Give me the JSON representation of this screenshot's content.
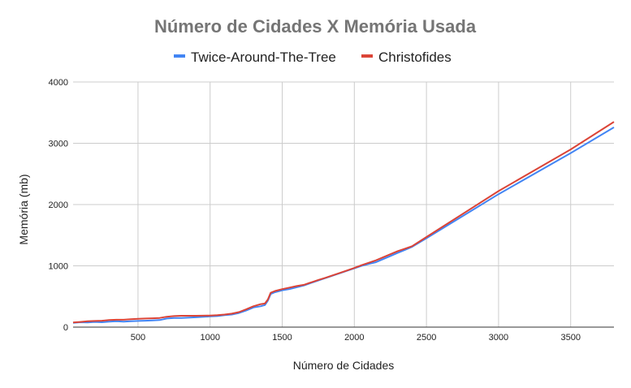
{
  "chart_data": {
    "type": "line",
    "title": "Número de Cidades X Memória Usada",
    "xlabel": "Número de Cidades",
    "ylabel": "Memória (mb)",
    "xlim": [
      50,
      3800
    ],
    "ylim": [
      0,
      4000
    ],
    "x_ticks": [
      500,
      1000,
      1500,
      2000,
      2500,
      3000,
      3500
    ],
    "y_ticks": [
      0,
      1000,
      2000,
      3000,
      4000
    ],
    "grid": true,
    "legend_position": "top",
    "series": [
      {
        "name": "Twice-Around-The-Tree",
        "color": "#4285f4",
        "points": [
          [
            50,
            70
          ],
          [
            100,
            80
          ],
          [
            150,
            75
          ],
          [
            200,
            85
          ],
          [
            250,
            80
          ],
          [
            300,
            90
          ],
          [
            350,
            95
          ],
          [
            400,
            90
          ],
          [
            450,
            95
          ],
          [
            500,
            100
          ],
          [
            550,
            105
          ],
          [
            600,
            110
          ],
          [
            650,
            115
          ],
          [
            700,
            140
          ],
          [
            750,
            150
          ],
          [
            800,
            150
          ],
          [
            900,
            160
          ],
          [
            1000,
            175
          ],
          [
            1050,
            180
          ],
          [
            1100,
            195
          ],
          [
            1150,
            205
          ],
          [
            1200,
            230
          ],
          [
            1250,
            270
          ],
          [
            1300,
            320
          ],
          [
            1350,
            340
          ],
          [
            1380,
            360
          ],
          [
            1400,
            430
          ],
          [
            1420,
            540
          ],
          [
            1450,
            570
          ],
          [
            1500,
            600
          ],
          [
            1550,
            620
          ],
          [
            1600,
            650
          ],
          [
            1650,
            680
          ],
          [
            1700,
            720
          ],
          [
            1750,
            760
          ],
          [
            1800,
            800
          ],
          [
            1850,
            840
          ],
          [
            1900,
            880
          ],
          [
            1950,
            920
          ],
          [
            2000,
            960
          ],
          [
            2050,
            1000
          ],
          [
            2100,
            1030
          ],
          [
            2150,
            1060
          ],
          [
            2200,
            1110
          ],
          [
            2250,
            1160
          ],
          [
            2300,
            1210
          ],
          [
            2350,
            1260
          ],
          [
            2400,
            1310
          ],
          [
            2500,
            1450
          ],
          [
            3000,
            2170
          ],
          [
            3500,
            2840
          ],
          [
            3800,
            3260
          ]
        ]
      },
      {
        "name": "Christofides",
        "color": "#db4437",
        "points": [
          [
            50,
            75
          ],
          [
            100,
            85
          ],
          [
            150,
            95
          ],
          [
            200,
            100
          ],
          [
            250,
            105
          ],
          [
            300,
            115
          ],
          [
            350,
            120
          ],
          [
            400,
            120
          ],
          [
            450,
            130
          ],
          [
            500,
            135
          ],
          [
            550,
            140
          ],
          [
            600,
            145
          ],
          [
            650,
            150
          ],
          [
            700,
            170
          ],
          [
            750,
            180
          ],
          [
            800,
            185
          ],
          [
            900,
            185
          ],
          [
            1000,
            190
          ],
          [
            1050,
            195
          ],
          [
            1100,
            205
          ],
          [
            1150,
            220
          ],
          [
            1200,
            245
          ],
          [
            1250,
            290
          ],
          [
            1300,
            340
          ],
          [
            1350,
            375
          ],
          [
            1380,
            385
          ],
          [
            1400,
            450
          ],
          [
            1420,
            560
          ],
          [
            1450,
            590
          ],
          [
            1500,
            620
          ],
          [
            1550,
            645
          ],
          [
            1600,
            670
          ],
          [
            1650,
            690
          ],
          [
            1700,
            730
          ],
          [
            1750,
            770
          ],
          [
            1800,
            805
          ],
          [
            1850,
            845
          ],
          [
            1900,
            885
          ],
          [
            1950,
            925
          ],
          [
            2000,
            965
          ],
          [
            2050,
            1010
          ],
          [
            2100,
            1050
          ],
          [
            2150,
            1090
          ],
          [
            2200,
            1140
          ],
          [
            2250,
            1190
          ],
          [
            2300,
            1240
          ],
          [
            2350,
            1280
          ],
          [
            2400,
            1320
          ],
          [
            2500,
            1470
          ],
          [
            3000,
            2220
          ],
          [
            3500,
            2900
          ],
          [
            3800,
            3350
          ]
        ]
      }
    ]
  }
}
